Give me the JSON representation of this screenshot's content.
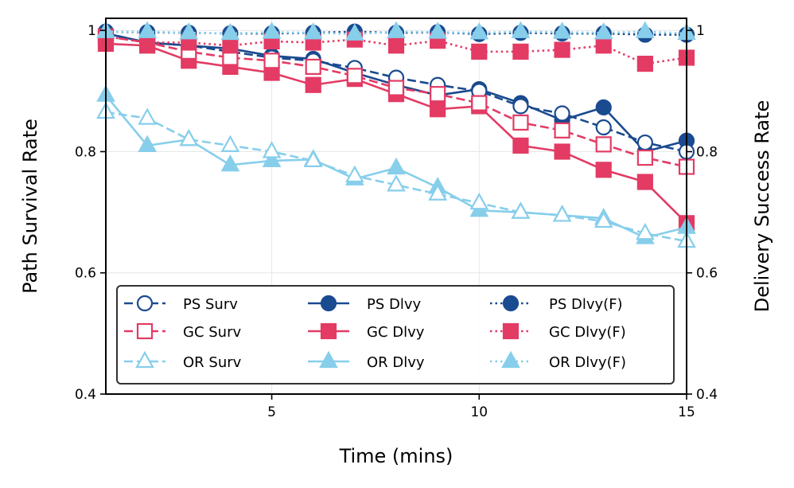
{
  "chart_data": {
    "type": "line",
    "xlabel": "Time (mins)",
    "ylabel_left": "Path Survival Rate",
    "ylabel_right": "Delivery Success Rate",
    "xlim": [
      1,
      15
    ],
    "ylim": [
      0.4,
      1.02
    ],
    "x_ticks": [
      5,
      10,
      15
    ],
    "x_tick_labels": [
      "5",
      "10",
      "15"
    ],
    "y_ticks": [
      0.4,
      0.6,
      0.8,
      1.0
    ],
    "y_tick_labels_left": [
      "0.4",
      "0.6",
      "0.8",
      "1"
    ],
    "y_tick_labels_right": [
      "0.4",
      "0.6",
      "0.8",
      "1"
    ],
    "grid": true,
    "legend_position": "lower-left",
    "x": [
      1,
      2,
      3,
      4,
      5,
      6,
      7,
      8,
      9,
      10,
      11,
      12,
      13,
      14,
      15
    ],
    "series": [
      {
        "name": "PS Surv",
        "color": "#1a4a8f",
        "dash": "dashed",
        "marker": "circle",
        "filled": false,
        "values": [
          0.995,
          0.98,
          0.975,
          0.965,
          0.955,
          0.95,
          0.938,
          0.922,
          0.91,
          0.9,
          0.875,
          0.863,
          0.84,
          0.815,
          0.8
        ]
      },
      {
        "name": "GC Surv",
        "color": "#e33b64",
        "dash": "dashed",
        "marker": "square",
        "filled": false,
        "values": [
          0.99,
          0.98,
          0.965,
          0.955,
          0.95,
          0.94,
          0.925,
          0.905,
          0.895,
          0.88,
          0.848,
          0.835,
          0.812,
          0.79,
          0.775
        ]
      },
      {
        "name": "OR Surv",
        "color": "#87ceeb",
        "dash": "dashed",
        "marker": "triangle",
        "filled": false,
        "values": [
          0.865,
          0.855,
          0.82,
          0.81,
          0.8,
          0.785,
          0.76,
          0.745,
          0.73,
          0.715,
          0.7,
          0.695,
          0.685,
          0.665,
          0.652
        ]
      },
      {
        "name": "PS Dlvy",
        "color": "#1a4a8f",
        "dash": "solid",
        "marker": "circle",
        "filled": true,
        "values": [
          0.995,
          0.98,
          0.975,
          0.97,
          0.958,
          0.953,
          0.93,
          0.91,
          0.893,
          0.903,
          0.88,
          0.852,
          0.873,
          0.8,
          0.818
        ]
      },
      {
        "name": "GC Dlvy",
        "color": "#e33b64",
        "dash": "solid",
        "marker": "square",
        "filled": true,
        "values": [
          0.978,
          0.975,
          0.95,
          0.94,
          0.93,
          0.91,
          0.92,
          0.895,
          0.87,
          0.875,
          0.81,
          0.8,
          0.77,
          0.75,
          0.682
        ]
      },
      {
        "name": "OR Dlvy",
        "color": "#87ceeb",
        "dash": "solid",
        "marker": "triangle",
        "filled": true,
        "values": [
          0.893,
          0.81,
          0.82,
          0.778,
          0.785,
          0.787,
          0.755,
          0.773,
          0.741,
          0.703,
          0.7,
          0.695,
          0.69,
          0.658,
          0.675
        ]
      },
      {
        "name": "PS Dlvy(F)",
        "color": "#1a4a8f",
        "dash": "dotted",
        "marker": "circle",
        "filled": true,
        "values": [
          0.998,
          0.997,
          0.996,
          0.995,
          0.995,
          0.996,
          0.998,
          0.996,
          0.997,
          0.994,
          0.996,
          0.995,
          0.995,
          0.993,
          0.993
        ]
      },
      {
        "name": "GC Dlvy(F)",
        "color": "#e33b64",
        "dash": "dotted",
        "marker": "square",
        "filled": true,
        "values": [
          0.99,
          0.98,
          0.98,
          0.975,
          0.982,
          0.98,
          0.985,
          0.975,
          0.983,
          0.965,
          0.965,
          0.968,
          0.975,
          0.945,
          0.955
        ]
      },
      {
        "name": "OR Dlvy(F)",
        "color": "#87ceeb",
        "dash": "dotted",
        "marker": "triangle",
        "filled": true,
        "values": [
          0.998,
          0.998,
          0.996,
          0.995,
          0.997,
          0.996,
          0.994,
          0.998,
          0.997,
          0.996,
          0.998,
          0.997,
          0.996,
          0.998,
          0.995
        ]
      }
    ]
  }
}
